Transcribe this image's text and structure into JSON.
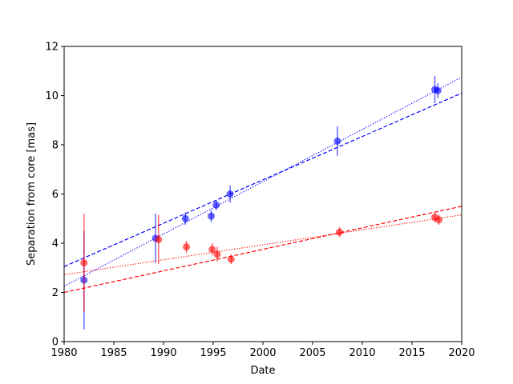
{
  "chart_data": {
    "type": "scatter",
    "title": "",
    "xlabel": "Date",
    "ylabel": "Separation from core [mas]",
    "xlim": [
      1980,
      2020
    ],
    "ylim": [
      0,
      12
    ],
    "xticks": [
      1980,
      1985,
      1990,
      1995,
      2000,
      2005,
      2010,
      2015,
      2020
    ],
    "yticks": [
      0,
      2,
      4,
      6,
      8,
      10,
      12
    ],
    "grid": false,
    "legend": "none",
    "series": [
      {
        "color": "#0000ff",
        "points": [
          {
            "x": 1982.0,
            "y": 2.5,
            "yerr": 2.0
          },
          {
            "x": 1989.2,
            "y": 4.2,
            "yerr": 1.0
          },
          {
            "x": 1992.2,
            "y": 5.0,
            "yerr": 0.25
          },
          {
            "x": 1994.8,
            "y": 5.1,
            "yerr": 0.25
          },
          {
            "x": 1995.3,
            "y": 5.55,
            "yerr": 0.2
          },
          {
            "x": 1996.7,
            "y": 6.0,
            "yerr": 0.35
          },
          {
            "x": 2007.5,
            "y": 8.15,
            "yerr": 0.6
          },
          {
            "x": 2017.3,
            "y": 10.25,
            "yerr": 0.55
          },
          {
            "x": 2017.6,
            "y": 10.2,
            "yerr": 0.3
          }
        ],
        "fits": [
          {
            "style": "dashed",
            "from": [
              1980,
              3.05
            ],
            "to": [
              2020,
              10.1
            ]
          },
          {
            "style": "dotted",
            "from": [
              1980,
              2.25
            ],
            "to": [
              2020,
              10.75
            ]
          }
        ]
      },
      {
        "color": "#ff0000",
        "points": [
          {
            "x": 1982.0,
            "y": 3.2,
            "yerr": 2.0
          },
          {
            "x": 1989.5,
            "y": 4.15,
            "yerr": 1.0
          },
          {
            "x": 1992.3,
            "y": 3.85,
            "yerr": 0.25
          },
          {
            "x": 1994.9,
            "y": 3.75,
            "yerr": 0.25
          },
          {
            "x": 1995.4,
            "y": 3.55,
            "yerr": 0.3
          },
          {
            "x": 1996.8,
            "y": 3.35,
            "yerr": 0.2
          },
          {
            "x": 2007.7,
            "y": 4.45,
            "yerr": 0.2
          },
          {
            "x": 2017.3,
            "y": 5.05,
            "yerr": 0.2
          },
          {
            "x": 2017.7,
            "y": 4.95,
            "yerr": 0.2
          }
        ],
        "fits": [
          {
            "style": "dashed",
            "from": [
              1980,
              2.0
            ],
            "to": [
              2020,
              5.5
            ]
          },
          {
            "style": "dotted",
            "from": [
              1980,
              2.72
            ],
            "to": [
              2020,
              5.15
            ]
          }
        ]
      }
    ]
  }
}
